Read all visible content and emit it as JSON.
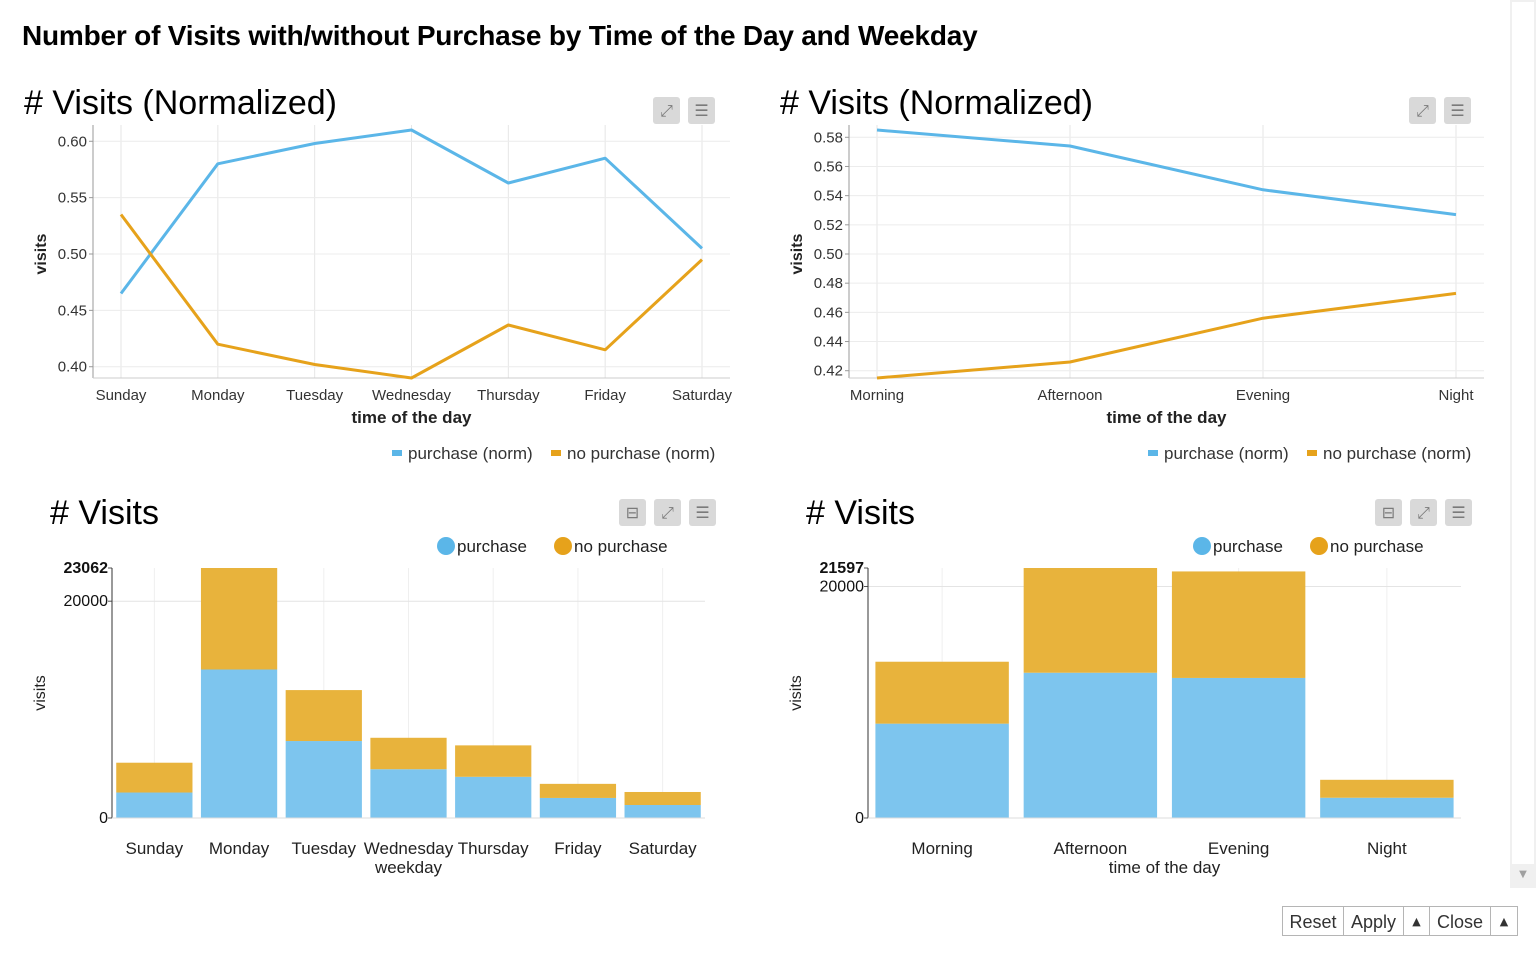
{
  "page": {
    "title": "Number of Visits with/without Purchase by Time of the Day and Weekday"
  },
  "colors": {
    "purchase_line": "#5bb6e8",
    "no_purchase_line": "#e6a21b",
    "purchase_bar": "#7dc5ee",
    "no_purchase_bar": "#e8b33c"
  },
  "icons": {
    "minimize": "minimize-icon",
    "fullscreen": "fullscreen-icon",
    "menu": "menu-icon",
    "dropdown": "dropdown-arrow-icon",
    "scroll_down": "scroll-down-icon"
  },
  "buttons": {
    "reset": "Reset",
    "apply": "Apply",
    "close": "Close"
  },
  "panels": [
    {
      "title": "# Visits (Normalized)"
    },
    {
      "title": "# Visits (Normalized)"
    },
    {
      "title": "# Visits"
    },
    {
      "title": "# Visits"
    }
  ],
  "chart_data": [
    {
      "type": "line",
      "categories": [
        "Sunday",
        "Monday",
        "Tuesday",
        "Wednesday",
        "Thursday",
        "Friday",
        "Saturday"
      ],
      "series": [
        {
          "name": "purchase (norm)",
          "values": [
            0.465,
            0.58,
            0.598,
            0.61,
            0.563,
            0.585,
            0.505
          ]
        },
        {
          "name": "no purchase (norm)",
          "values": [
            0.535,
            0.42,
            0.402,
            0.39,
            0.437,
            0.415,
            0.495
          ]
        }
      ],
      "title": "# Visits (Normalized)",
      "xlabel": "time of the day",
      "ylabel": "visits",
      "ylim": [
        0.39,
        0.61
      ],
      "yticks": [
        "0.40",
        "0.45",
        "0.50",
        "0.55",
        "0.60"
      ],
      "grid": true,
      "legend": "bottom-right"
    },
    {
      "type": "line",
      "categories": [
        "Morning",
        "Afternoon",
        "Evening",
        "Night"
      ],
      "series": [
        {
          "name": "purchase (norm)",
          "values": [
            0.585,
            0.574,
            0.544,
            0.527
          ]
        },
        {
          "name": "no purchase (norm)",
          "values": [
            0.415,
            0.426,
            0.456,
            0.473
          ]
        }
      ],
      "title": "# Visits (Normalized)",
      "xlabel": "time of the day",
      "ylabel": "visits",
      "ylim": [
        0.415,
        0.585
      ],
      "yticks": [
        "0.42",
        "0.44",
        "0.46",
        "0.48",
        "0.50",
        "0.52",
        "0.54",
        "0.56",
        "0.58"
      ],
      "grid": true,
      "legend": "bottom-right"
    },
    {
      "type": "bar",
      "stacked": true,
      "categories": [
        "Sunday",
        "Monday",
        "Tuesday",
        "Wednesday",
        "Thursday",
        "Friday",
        "Saturday"
      ],
      "series": [
        {
          "name": "purchase",
          "values": [
            2350,
            13700,
            7100,
            4500,
            3800,
            1850,
            1200
          ]
        },
        {
          "name": "no purchase",
          "values": [
            2750,
            9362,
            4700,
            2900,
            2900,
            1300,
            1200
          ]
        }
      ],
      "title": "# Visits",
      "xlabel": "weekday",
      "ylabel": "visits",
      "ylim": [
        0,
        23062
      ],
      "yticks": [
        "0",
        "20000",
        "23062"
      ],
      "grid": true,
      "legend": "top-right"
    },
    {
      "type": "bar",
      "stacked": true,
      "categories": [
        "Morning",
        "Afternoon",
        "Evening",
        "Night"
      ],
      "series": [
        {
          "name": "purchase",
          "values": [
            8150,
            12550,
            12100,
            1750
          ]
        },
        {
          "name": "no purchase",
          "values": [
            5350,
            9047,
            9200,
            1550
          ]
        }
      ],
      "title": "# Visits",
      "xlabel": "time of the day",
      "ylabel": "visits",
      "ylim": [
        0,
        21597
      ],
      "yticks": [
        "0",
        "20000",
        "21597"
      ],
      "grid": true,
      "legend": "top-right"
    }
  ]
}
